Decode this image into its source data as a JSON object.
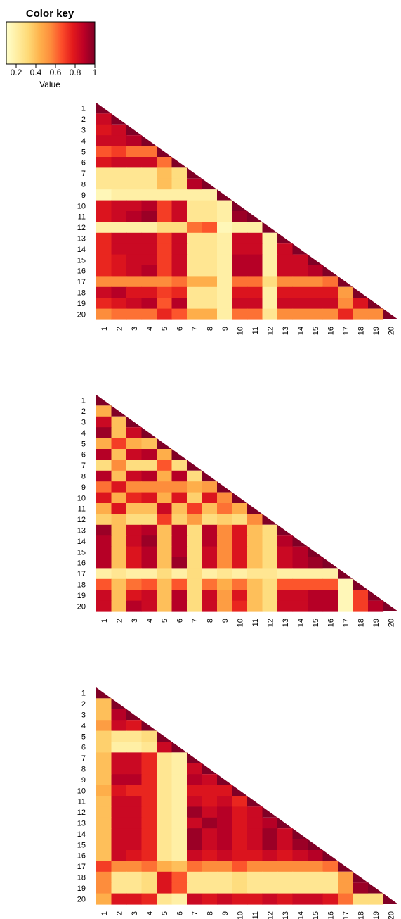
{
  "color_key": {
    "title": "Color key",
    "xlabel": "Value",
    "ticks": [
      0.2,
      0.4,
      0.6,
      0.8,
      1
    ],
    "tick_labels": [
      "0.2",
      "0.4",
      "0.6",
      "0.8",
      "1"
    ],
    "range": [
      0.1,
      1
    ],
    "colors": [
      "#FFFFCC",
      "#FFEDA0",
      "#FED976",
      "#FEB24C",
      "#FD8D3C",
      "#FC4E2A",
      "#E31A1C",
      "#BD0026",
      "#800026"
    ]
  },
  "chart_data": [
    {
      "type": "heatmap",
      "shape": "lower-triangle",
      "categories": [
        "1",
        "2",
        "3",
        "4",
        "5",
        "6",
        "7",
        "8",
        "9",
        "10",
        "11",
        "12",
        "13",
        "14",
        "15",
        "16",
        "17",
        "18",
        "19",
        "20"
      ],
      "values": [
        [
          1
        ],
        [
          0.85,
          1
        ],
        [
          0.8,
          0.85,
          1
        ],
        [
          0.85,
          0.85,
          0.9,
          1
        ],
        [
          0.65,
          0.7,
          0.6,
          0.6,
          1
        ],
        [
          0.8,
          0.85,
          0.85,
          0.85,
          0.6,
          1
        ],
        [
          0.25,
          0.25,
          0.25,
          0.25,
          0.4,
          0.3,
          1
        ],
        [
          0.25,
          0.25,
          0.25,
          0.25,
          0.4,
          0.3,
          0.9,
          1
        ],
        [
          0.15,
          0.2,
          0.2,
          0.2,
          0.2,
          0.2,
          0.2,
          0.2,
          1
        ],
        [
          0.8,
          0.85,
          0.85,
          0.9,
          0.7,
          0.85,
          0.25,
          0.25,
          0.2,
          1
        ],
        [
          0.8,
          0.85,
          0.9,
          0.95,
          0.7,
          0.85,
          0.25,
          0.25,
          0.2,
          0.95,
          1
        ],
        [
          0.2,
          0.2,
          0.2,
          0.2,
          0.3,
          0.3,
          0.6,
          0.65,
          0.15,
          0.2,
          0.2,
          1
        ],
        [
          0.75,
          0.85,
          0.85,
          0.85,
          0.7,
          0.85,
          0.25,
          0.25,
          0.2,
          0.85,
          0.85,
          0.2,
          1
        ],
        [
          0.75,
          0.85,
          0.85,
          0.85,
          0.7,
          0.85,
          0.25,
          0.25,
          0.2,
          0.85,
          0.85,
          0.2,
          0.85,
          1
        ],
        [
          0.75,
          0.8,
          0.85,
          0.85,
          0.7,
          0.85,
          0.25,
          0.25,
          0.2,
          0.9,
          0.9,
          0.2,
          0.85,
          0.85,
          1
        ],
        [
          0.75,
          0.8,
          0.85,
          0.9,
          0.7,
          0.85,
          0.25,
          0.25,
          0.2,
          0.9,
          0.9,
          0.2,
          0.85,
          0.85,
          0.9,
          1
        ],
        [
          0.55,
          0.55,
          0.55,
          0.55,
          0.55,
          0.6,
          0.45,
          0.45,
          0.2,
          0.6,
          0.6,
          0.3,
          0.55,
          0.55,
          0.55,
          0.6,
          1
        ],
        [
          0.85,
          0.9,
          0.8,
          0.8,
          0.7,
          0.75,
          0.25,
          0.25,
          0.2,
          0.8,
          0.8,
          0.2,
          0.8,
          0.8,
          0.8,
          0.8,
          0.5,
          1
        ],
        [
          0.75,
          0.8,
          0.85,
          0.9,
          0.65,
          0.9,
          0.25,
          0.25,
          0.2,
          0.85,
          0.85,
          0.2,
          0.85,
          0.85,
          0.85,
          0.85,
          0.55,
          0.8,
          1
        ],
        [
          0.55,
          0.6,
          0.6,
          0.6,
          0.75,
          0.65,
          0.45,
          0.45,
          0.2,
          0.6,
          0.6,
          0.25,
          0.55,
          0.55,
          0.55,
          0.55,
          0.75,
          0.55,
          0.55,
          1
        ]
      ]
    },
    {
      "type": "heatmap",
      "shape": "lower-triangle",
      "categories": [
        "1",
        "2",
        "3",
        "4",
        "5",
        "6",
        "7",
        "8",
        "9",
        "10",
        "11",
        "12",
        "13",
        "14",
        "15",
        "16",
        "17",
        "18",
        "19",
        "20"
      ],
      "values": [
        [
          1
        ],
        [
          0.45,
          1
        ],
        [
          0.85,
          0.4,
          1
        ],
        [
          0.95,
          0.4,
          0.85,
          1
        ],
        [
          0.45,
          0.7,
          0.45,
          0.4,
          1
        ],
        [
          0.9,
          0.4,
          0.85,
          0.9,
          0.45,
          1
        ],
        [
          0.3,
          0.55,
          0.3,
          0.3,
          0.65,
          0.3,
          1
        ],
        [
          0.9,
          0.4,
          0.85,
          0.9,
          0.45,
          0.9,
          0.3,
          1
        ],
        [
          0.6,
          0.8,
          0.55,
          0.55,
          0.55,
          0.55,
          0.45,
          0.5,
          1
        ],
        [
          0.8,
          0.45,
          0.75,
          0.8,
          0.45,
          0.8,
          0.35,
          0.8,
          0.55,
          1
        ],
        [
          0.45,
          0.8,
          0.4,
          0.4,
          0.85,
          0.4,
          0.7,
          0.4,
          0.6,
          0.45,
          1
        ],
        [
          0.35,
          0.4,
          0.3,
          0.3,
          0.7,
          0.35,
          0.5,
          0.3,
          0.35,
          0.3,
          0.55,
          1
        ],
        [
          0.95,
          0.4,
          0.85,
          0.9,
          0.4,
          0.9,
          0.3,
          0.9,
          0.55,
          0.8,
          0.4,
          0.3,
          1
        ],
        [
          0.9,
          0.4,
          0.85,
          0.95,
          0.4,
          0.9,
          0.3,
          0.9,
          0.55,
          0.8,
          0.4,
          0.3,
          0.9,
          1
        ],
        [
          0.9,
          0.4,
          0.8,
          0.9,
          0.4,
          0.9,
          0.3,
          0.85,
          0.55,
          0.8,
          0.4,
          0.3,
          0.85,
          0.9,
          1
        ],
        [
          0.9,
          0.4,
          0.8,
          0.9,
          0.4,
          0.95,
          0.3,
          0.85,
          0.55,
          0.8,
          0.4,
          0.3,
          0.85,
          0.9,
          0.95,
          1
        ],
        [
          0.2,
          0.25,
          0.2,
          0.2,
          0.3,
          0.2,
          0.3,
          0.2,
          0.25,
          0.2,
          0.25,
          0.25,
          0.2,
          0.2,
          0.2,
          0.2,
          1
        ],
        [
          0.65,
          0.4,
          0.6,
          0.65,
          0.4,
          0.65,
          0.3,
          0.6,
          0.45,
          0.6,
          0.4,
          0.3,
          0.65,
          0.65,
          0.65,
          0.65,
          0.15,
          1
        ],
        [
          0.85,
          0.4,
          0.8,
          0.85,
          0.4,
          0.9,
          0.3,
          0.85,
          0.5,
          0.8,
          0.4,
          0.3,
          0.85,
          0.85,
          0.9,
          0.9,
          0.15,
          0.7,
          1
        ],
        [
          0.85,
          0.4,
          0.9,
          0.85,
          0.4,
          0.9,
          0.3,
          0.85,
          0.5,
          0.75,
          0.4,
          0.3,
          0.85,
          0.85,
          0.9,
          0.9,
          0.15,
          0.7,
          0.9,
          1
        ]
      ]
    },
    {
      "type": "heatmap",
      "shape": "lower-triangle",
      "categories": [
        "1",
        "2",
        "3",
        "4",
        "5",
        "6",
        "7",
        "8",
        "9",
        "10",
        "11",
        "12",
        "13",
        "14",
        "15",
        "16",
        "17",
        "18",
        "19",
        "20"
      ],
      "values": [
        [
          1
        ],
        [
          0.4,
          1
        ],
        [
          0.4,
          0.9,
          1
        ],
        [
          0.5,
          0.85,
          0.8,
          1
        ],
        [
          0.35,
          0.25,
          0.25,
          0.3,
          1
        ],
        [
          0.35,
          0.2,
          0.2,
          0.25,
          0.85,
          1
        ],
        [
          0.4,
          0.85,
          0.85,
          0.75,
          0.25,
          0.2,
          1
        ],
        [
          0.4,
          0.85,
          0.85,
          0.75,
          0.25,
          0.2,
          0.85,
          1
        ],
        [
          0.4,
          0.9,
          0.9,
          0.75,
          0.25,
          0.2,
          0.9,
          0.85,
          1
        ],
        [
          0.45,
          0.8,
          0.75,
          0.75,
          0.25,
          0.2,
          0.8,
          0.8,
          0.8,
          1
        ],
        [
          0.4,
          0.85,
          0.85,
          0.75,
          0.25,
          0.2,
          0.85,
          0.8,
          0.85,
          0.75,
          1
        ],
        [
          0.4,
          0.85,
          0.85,
          0.75,
          0.25,
          0.2,
          0.95,
          0.85,
          0.9,
          0.8,
          0.85,
          1
        ],
        [
          0.4,
          0.85,
          0.85,
          0.75,
          0.25,
          0.2,
          0.85,
          0.95,
          0.9,
          0.8,
          0.85,
          0.9,
          1
        ],
        [
          0.4,
          0.85,
          0.85,
          0.75,
          0.25,
          0.2,
          0.95,
          0.85,
          0.9,
          0.8,
          0.85,
          0.95,
          0.85,
          1
        ],
        [
          0.4,
          0.85,
          0.85,
          0.75,
          0.25,
          0.2,
          0.95,
          0.85,
          0.9,
          0.8,
          0.85,
          0.95,
          0.85,
          0.95,
          1
        ],
        [
          0.4,
          0.85,
          0.8,
          0.75,
          0.25,
          0.2,
          0.85,
          0.8,
          0.85,
          0.8,
          0.8,
          0.85,
          0.8,
          0.85,
          0.9,
          1
        ],
        [
          0.7,
          0.55,
          0.55,
          0.6,
          0.45,
          0.4,
          0.6,
          0.55,
          0.55,
          0.65,
          0.55,
          0.55,
          0.55,
          0.55,
          0.55,
          0.6,
          1
        ],
        [
          0.55,
          0.25,
          0.25,
          0.3,
          0.8,
          0.65,
          0.25,
          0.25,
          0.25,
          0.3,
          0.25,
          0.25,
          0.25,
          0.25,
          0.25,
          0.25,
          0.5,
          1
        ],
        [
          0.55,
          0.25,
          0.25,
          0.3,
          0.8,
          0.65,
          0.25,
          0.25,
          0.25,
          0.3,
          0.25,
          0.25,
          0.25,
          0.25,
          0.25,
          0.25,
          0.5,
          0.95,
          1
        ],
        [
          0.45,
          0.8,
          0.8,
          0.75,
          0.25,
          0.2,
          0.85,
          0.8,
          0.85,
          0.8,
          0.8,
          0.85,
          0.8,
          0.85,
          0.85,
          0.8,
          0.6,
          0.3,
          0.3,
          1
        ]
      ]
    }
  ]
}
